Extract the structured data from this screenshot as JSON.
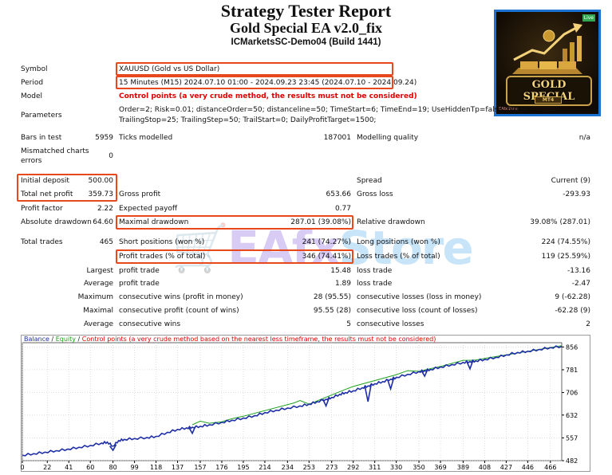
{
  "header": {
    "title": "Strategy Tester Report",
    "subtitle": "Gold Special EA v2.0_fix",
    "server": "ICMarketsSC-Demo04 (Build 1441)"
  },
  "logo": {
    "live": "Live",
    "text": "GOLD SPECIAL",
    "sub": "MT4",
    "mark": "EAfxStore"
  },
  "watermark": {
    "part1": "🛒EAfx",
    "part2": "Store"
  },
  "report": {
    "symbol_label": "Symbol",
    "symbol_value": "XAUUSD (Gold vs US Dollar)",
    "period_label": "Period",
    "period_value": "15 Minutes (M15) 2024.07.10 01:00 - 2024.09.23 23:45 (2024.07.10 - 2024.09.24)",
    "model_label": "Model",
    "model_value": "Control points (a very crude method, the results must not be considered)",
    "parameters_label": "Parameters",
    "parameters_line1": "Order=2; Risk=0.01; distanceOrder=50; distanceline=50; TimeStart=6; TimeEnd=19; UseHiddenTp=false; hidde",
    "parameters_line2": "TrailingStop=25; TrailingStep=50; TrailStart=0; DailyProfitTarget=1500;",
    "bars_label": "Bars in test",
    "bars_value": "5959",
    "ticks_label": "Ticks modelled",
    "ticks_value": "187001",
    "quality_label": "Modelling quality",
    "quality_value": "n/a",
    "mismatch_label1": "Mismatched charts",
    "mismatch_label2": "errors",
    "mismatch_value": "0",
    "deposit_label": "Initial deposit",
    "deposit_value": "500.00",
    "spread_label": "Spread",
    "spread_value": "Current (9)",
    "net_label": "Total net profit",
    "net_value": "359.73",
    "gross_profit_label": "Gross profit",
    "gross_profit_value": "653.66",
    "gross_loss_label": "Gross loss",
    "gross_loss_value": "-293.93",
    "pf_label": "Profit factor",
    "pf_value": "2.22",
    "ep_label": "Expected payoff",
    "ep_value": "0.77",
    "abs_dd_label": "Absolute drawdown",
    "abs_dd_value": "64.60",
    "max_dd_label": "Maximal drawdown",
    "max_dd_value": "287.01 (39.08%)",
    "rel_dd_label": "Relative drawdown",
    "rel_dd_value": "39.08% (287.01)",
    "trades_label": "Total trades",
    "trades_value": "465",
    "short_label": "Short positions (won %)",
    "short_value": "241 (74.27%)",
    "long_label": "Long positions (won %)",
    "long_value": "224 (74.55%)",
    "profit_trades_label": "Profit trades (% of total)",
    "profit_trades_value": "346 (74.41%)",
    "loss_trades_label": "Loss trades (% of total)",
    "loss_trades_value": "119 (25.59%)",
    "largest_label": "Largest",
    "largest_pt_label": "profit trade",
    "largest_pt_value": "15.48",
    "largest_lt_label": "loss trade",
    "largest_lt_value": "-13.16",
    "average_label": "Average",
    "average_pt_label": "profit trade",
    "average_pt_value": "1.89",
    "average_lt_label": "loss trade",
    "average_lt_value": "-2.47",
    "maximum_label": "Maximum",
    "max_cw_label": "consecutive wins (profit in money)",
    "max_cw_value": "28 (95.55)",
    "max_cl_label": "consecutive losses (loss in money)",
    "max_cl_value": "9 (-62.28)",
    "maximal_label": "Maximal",
    "maximal_cp_label": "consecutive profit (count of wins)",
    "maximal_cp_value": "95.55 (28)",
    "maximal_cl_label": "consecutive loss (count of losses)",
    "maximal_cl_value": "-62.28 (9)",
    "avg2_label": "Average",
    "avg_cw_label": "consecutive wins",
    "avg_cw_value": "5",
    "avg_cl_label": "consecutive losses",
    "avg_cl_value": "2"
  },
  "chart_data": {
    "type": "line",
    "legend": {
      "balance": "Balance",
      "sep1": " / ",
      "equity": "Equity",
      "sep2": " / ",
      "control": "Control points (a very crude method based on the nearest less timeframe, the results must not be considered)"
    },
    "x_ticks": [
      0,
      22,
      41,
      60,
      80,
      99,
      118,
      137,
      157,
      176,
      195,
      214,
      234,
      253,
      273,
      292,
      311,
      330,
      350,
      369,
      389,
      408,
      427,
      446,
      466
    ],
    "y_ticks": [
      482,
      557,
      632,
      706,
      781,
      856
    ],
    "xlim": [
      0,
      476
    ],
    "ylim": [
      482,
      870
    ],
    "series": [
      {
        "name": "Balance",
        "color": "#1f2fa6",
        "x": [
          0,
          10,
          20,
          30,
          40,
          50,
          60,
          70,
          75,
          80,
          85,
          90,
          99,
          110,
          118,
          128,
          137,
          145,
          150,
          157,
          165,
          176,
          185,
          195,
          205,
          214,
          224,
          234,
          245,
          253,
          260,
          268,
          273,
          280,
          285,
          292,
          300,
          305,
          311,
          318,
          325,
          330,
          340,
          350,
          355,
          360,
          369,
          379,
          389,
          395,
          400,
          408,
          418,
          427,
          437,
          446,
          456,
          466,
          476
        ],
        "y": [
          500,
          505,
          510,
          515,
          520,
          526,
          532,
          540,
          543,
          530,
          548,
          552,
          555,
          558,
          562,
          575,
          585,
          590,
          592,
          595,
          600,
          608,
          615,
          622,
          630,
          640,
          648,
          655,
          662,
          668,
          676,
          684,
          690,
          700,
          706,
          712,
          722,
          728,
          735,
          742,
          750,
          756,
          766,
          775,
          778,
          782,
          790,
          798,
          805,
          808,
          810,
          815,
          822,
          830,
          838,
          842,
          848,
          854,
          858
        ]
      },
      {
        "name": "Equity",
        "color": "#1fa01f",
        "x": [
          150,
          157,
          165,
          176,
          185,
          195,
          240,
          245,
          253,
          285,
          292,
          330,
          340,
          350,
          369,
          389,
          395,
          400,
          408,
          476
        ],
        "y": [
          600,
          612,
          605,
          610,
          620,
          628,
          672,
          680,
          668,
          716,
          726,
          765,
          778,
          776,
          792,
          812,
          812,
          813,
          818,
          860
        ]
      }
    ],
    "drawdowns": [
      {
        "x": 80,
        "y": 530,
        "depth": 14
      },
      {
        "x": 150,
        "y": 590,
        "depth": 18
      },
      {
        "x": 268,
        "y": 684,
        "depth": 22
      },
      {
        "x": 305,
        "y": 728,
        "depth": 52
      },
      {
        "x": 325,
        "y": 750,
        "depth": 32
      },
      {
        "x": 355,
        "y": 778,
        "depth": 18
      },
      {
        "x": 395,
        "y": 808,
        "depth": 24
      }
    ]
  }
}
